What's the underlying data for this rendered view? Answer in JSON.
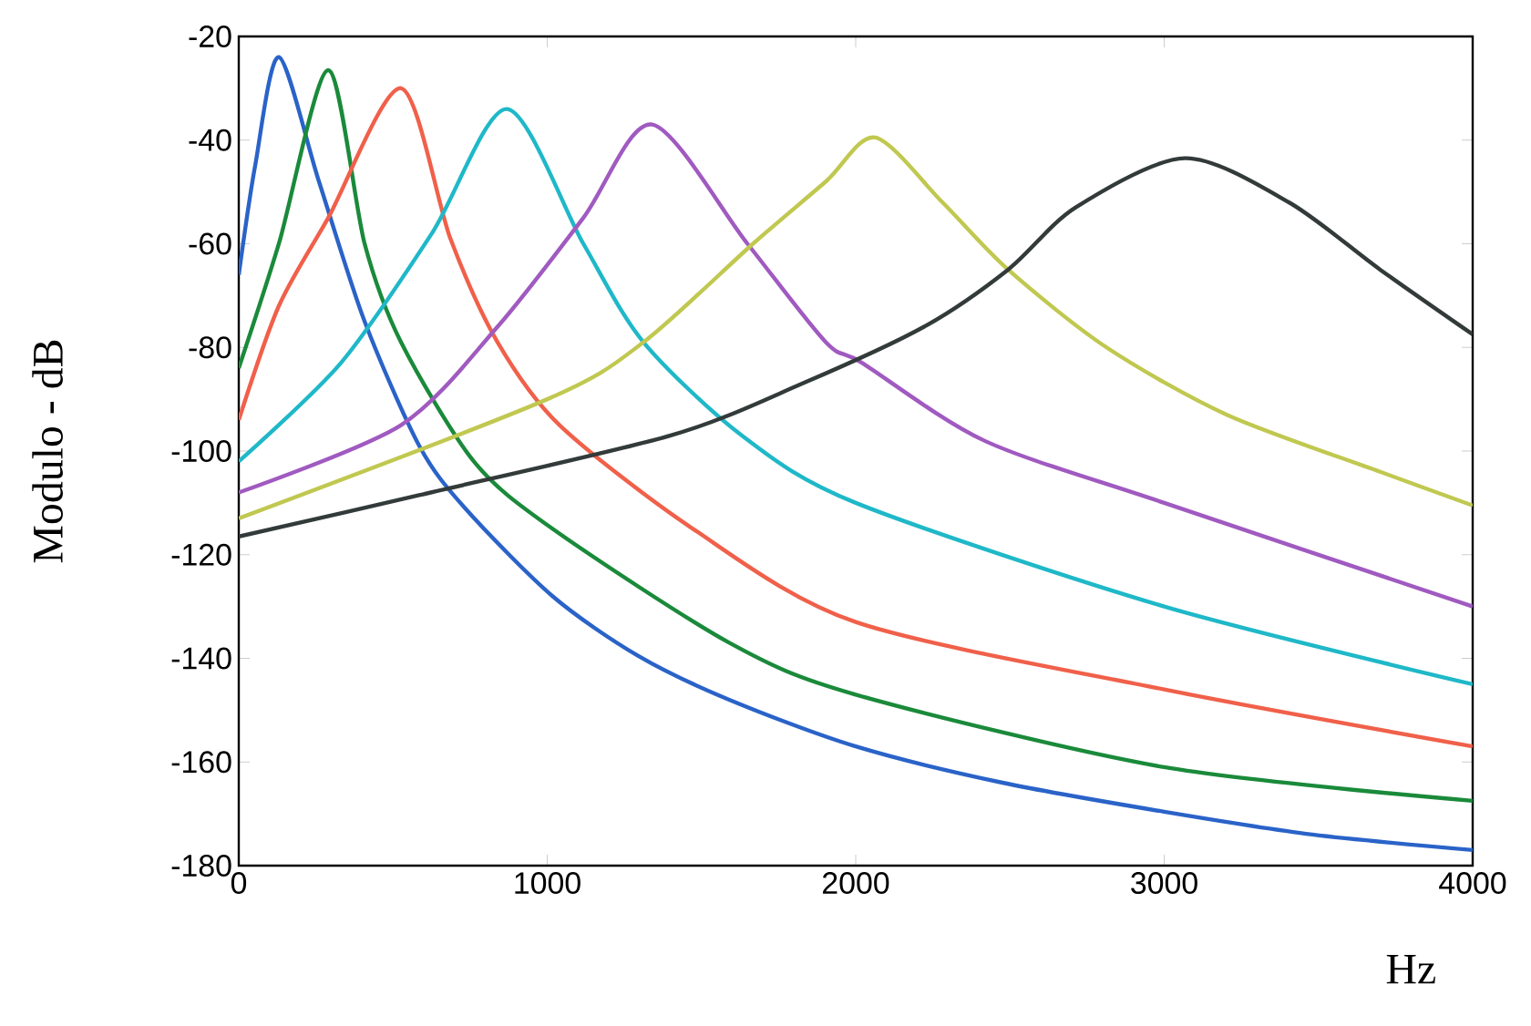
{
  "chart_data": {
    "type": "line",
    "xlabel": "Hz",
    "ylabel": "Modulo - dB",
    "xlim": [
      0,
      4000
    ],
    "ylim": [
      -180,
      -20
    ],
    "xticks": [
      0,
      1000,
      2000,
      3000,
      4000
    ],
    "yticks": [
      -180,
      -160,
      -140,
      -120,
      -100,
      -80,
      -60,
      -40,
      -20
    ],
    "grid": false,
    "marker": "none",
    "line_style": "solid",
    "series": [
      {
        "color": "#2a63c8",
        "x": [
          0,
          53,
          130,
          260,
          408,
          585,
          733,
          1017,
          1294,
          1590,
          2000,
          2476,
          3000,
          3480,
          4000
        ],
        "values": [
          -66,
          -45,
          -24,
          -48,
          -75,
          -99,
          -111,
          -128,
          -139.5,
          -148,
          -157,
          -164,
          -169.6,
          -174,
          -177
        ]
      },
      {
        "color": "#1a8a3a",
        "x": [
          0,
          130,
          290,
          408,
          526,
          762,
          1017,
          1590,
          2000,
          3000,
          4000
        ],
        "values": [
          -84,
          -60,
          -26.5,
          -60,
          -79,
          -102,
          -115,
          -137,
          -147,
          -161,
          -167.5
        ]
      },
      {
        "color": "#f0604a",
        "x": [
          0,
          130,
          290,
          526,
          686,
          839,
          1040,
          1472,
          2000,
          3000,
          4000
        ],
        "values": [
          -94,
          -72,
          -55,
          -30,
          -59,
          -79,
          -95,
          -115,
          -133,
          -146,
          -157
        ]
      },
      {
        "color": "#1fb8c8",
        "x": [
          0,
          331,
          626,
          870,
          1117,
          1312,
          1631,
          2000,
          3000,
          4000
        ],
        "values": [
          -102,
          -83,
          -58,
          -34,
          -60,
          -79,
          -97,
          -110,
          -130,
          -145
        ]
      },
      {
        "color": "#a05ac0",
        "x": [
          0,
          526,
          839,
          1117,
          1340,
          1649,
          1903,
          2021,
          2417,
          3000,
          4000
        ],
        "values": [
          -108,
          -95,
          -76,
          -55,
          -37,
          -60,
          -79,
          -83,
          -98,
          -110,
          -130
        ]
      },
      {
        "color": "#c0c850",
        "x": [
          0,
          1000,
          1312,
          1667,
          1903,
          2063,
          2281,
          2494,
          2813,
          3203,
          3700,
          4000
        ],
        "values": [
          -113,
          -90,
          -79,
          -60,
          -48,
          -39.5,
          -52,
          -65,
          -80,
          -93,
          -104,
          -110.5
        ]
      },
      {
        "color": "#333a3a",
        "x": [
          0,
          585,
          1400,
          1826,
          2222,
          2494,
          2713,
          3067,
          3404,
          3700,
          4000
        ],
        "values": [
          -116.5,
          -108.5,
          -97,
          -87,
          -76,
          -65,
          -53,
          -43.5,
          -52,
          -65,
          -77.5
        ]
      }
    ]
  }
}
